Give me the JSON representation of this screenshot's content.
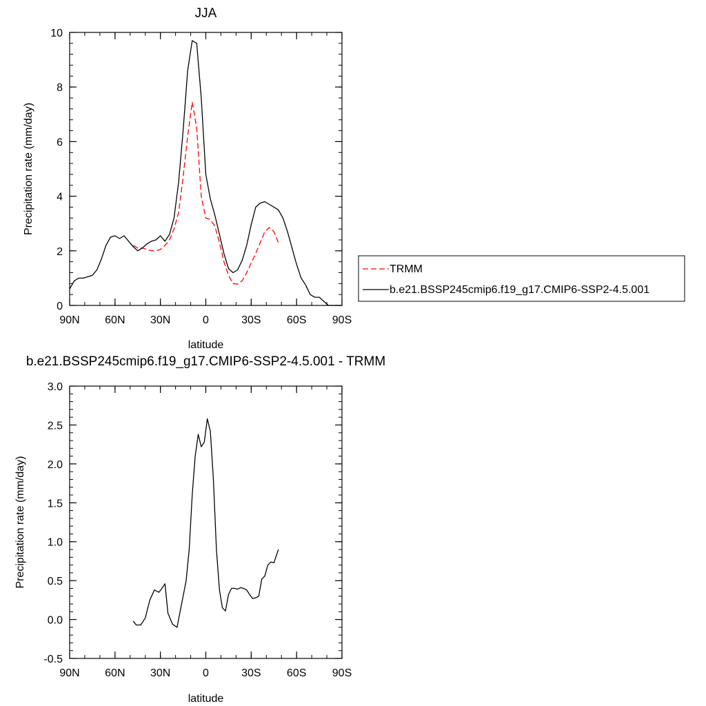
{
  "chart_data": [
    {
      "type": "line",
      "title": "JJA",
      "xlabel": "latitude",
      "ylabel": "Precipitation rate (mm/day)",
      "xlim": [
        90,
        -90
      ],
      "ylim": [
        0,
        10
      ],
      "x_ticks": [
        {
          "value": 90,
          "label": "90N"
        },
        {
          "value": 60,
          "label": "60N"
        },
        {
          "value": 30,
          "label": "30N"
        },
        {
          "value": 0,
          "label": "0"
        },
        {
          "value": -30,
          "label": "30S"
        },
        {
          "value": -60,
          "label": "60S"
        },
        {
          "value": -90,
          "label": "90S"
        }
      ],
      "y_ticks": [
        {
          "value": 0,
          "label": "0"
        },
        {
          "value": 2,
          "label": "2"
        },
        {
          "value": 4,
          "label": "4"
        },
        {
          "value": 6,
          "label": "6"
        },
        {
          "value": 8,
          "label": "8"
        },
        {
          "value": 10,
          "label": "10"
        }
      ],
      "legend": {
        "position": "right",
        "entries": [
          {
            "label": "TRMM",
            "color": "#ff0000",
            "dash": "dashed"
          },
          {
            "label": "b.e21.BSSP245cmip6.f19_g17.CMIP6-SSP2-4.5.001",
            "color": "#000000",
            "dash": "solid"
          }
        ]
      },
      "series": [
        {
          "name": "TRMM",
          "color": "#ff0000",
          "dash": "dashed",
          "x": [
            48,
            45,
            42,
            39,
            36,
            33,
            30,
            27,
            24,
            21,
            18,
            15,
            12,
            9,
            6,
            3,
            0,
            -3,
            -6,
            -9,
            -12,
            -15,
            -18,
            -21,
            -24,
            -27,
            -30,
            -33,
            -36,
            -39,
            -42,
            -45,
            -48
          ],
          "y": [
            2.2,
            2.1,
            2.1,
            2.05,
            2.0,
            2.0,
            2.05,
            2.2,
            2.4,
            2.8,
            3.4,
            4.7,
            6.2,
            7.45,
            6.5,
            4.0,
            3.2,
            3.15,
            2.9,
            2.3,
            1.6,
            1.1,
            0.8,
            0.78,
            0.9,
            1.2,
            1.55,
            1.9,
            2.3,
            2.7,
            2.85,
            2.7,
            2.3
          ]
        },
        {
          "name": "b.e21.BSSP245cmip6.f19_g17.CMIP6-SSP2-4.5.001",
          "color": "#000000",
          "dash": "solid",
          "x": [
            90,
            87,
            84,
            81,
            78,
            75,
            72,
            69,
            66,
            63,
            60,
            57,
            54,
            51,
            48,
            45,
            42,
            39,
            36,
            33,
            30,
            27,
            24,
            21,
            18,
            15,
            12,
            9,
            6,
            3,
            0,
            -3,
            -6,
            -9,
            -12,
            -15,
            -18,
            -21,
            -24,
            -27,
            -30,
            -33,
            -36,
            -39,
            -42,
            -45,
            -48,
            -51,
            -54,
            -57,
            -60,
            -63,
            -66,
            -69,
            -72,
            -75,
            -78,
            -81,
            -84,
            -87,
            -90
          ],
          "y": [
            0.6,
            0.9,
            1.0,
            1.0,
            1.05,
            1.1,
            1.3,
            1.7,
            2.2,
            2.5,
            2.55,
            2.45,
            2.55,
            2.35,
            2.15,
            2.0,
            2.1,
            2.25,
            2.35,
            2.4,
            2.55,
            2.35,
            2.6,
            3.2,
            4.5,
            6.4,
            8.6,
            9.7,
            9.6,
            7.6,
            4.8,
            3.9,
            3.3,
            2.6,
            1.9,
            1.35,
            1.2,
            1.3,
            1.65,
            2.2,
            2.95,
            3.6,
            3.75,
            3.8,
            3.7,
            3.6,
            3.5,
            3.2,
            2.7,
            2.1,
            1.5,
            1.0,
            0.75,
            0.4,
            0.3,
            0.3,
            0.15,
            0.0,
            0.0,
            0.0,
            0.0
          ]
        }
      ]
    },
    {
      "type": "line",
      "title": "b.e21.BSSP245cmip6.f19_g17.CMIP6-SSP2-4.5.001 - TRMM",
      "xlabel": "latitude",
      "ylabel": "Precipitation rate (mm/day)",
      "xlim": [
        90,
        -90
      ],
      "ylim": [
        -0.5,
        3.0
      ],
      "x_ticks": [
        {
          "value": 90,
          "label": "90N"
        },
        {
          "value": 60,
          "label": "60N"
        },
        {
          "value": 30,
          "label": "30N"
        },
        {
          "value": 0,
          "label": "0"
        },
        {
          "value": -30,
          "label": "30S"
        },
        {
          "value": -60,
          "label": "60S"
        },
        {
          "value": -90,
          "label": "90S"
        }
      ],
      "y_ticks": [
        {
          "value": -0.5,
          "label": "-0.5"
        },
        {
          "value": 0.0,
          "label": "0.0"
        },
        {
          "value": 0.5,
          "label": "0.5"
        },
        {
          "value": 1.0,
          "label": "1.0"
        },
        {
          "value": 1.5,
          "label": "1.5"
        },
        {
          "value": 2.0,
          "label": "2.0"
        },
        {
          "value": 2.5,
          "label": "2.5"
        },
        {
          "value": 3.0,
          "label": "3.0"
        }
      ],
      "series": [
        {
          "color": "#000000",
          "dash": "solid",
          "x": [
            48,
            46,
            43,
            40,
            37,
            34,
            31,
            29,
            27,
            25,
            22,
            19,
            16,
            13,
            11,
            9,
            7,
            5,
            3,
            1,
            -1,
            -3,
            -5,
            -7,
            -9,
            -11,
            -13,
            -15,
            -17,
            -19,
            -21,
            -23,
            -25,
            -27,
            -29,
            -31,
            -33,
            -35,
            -37,
            -39,
            -41,
            -43,
            -45,
            -48
          ],
          "y": [
            -0.02,
            -0.07,
            -0.07,
            0.02,
            0.25,
            0.38,
            0.35,
            0.4,
            0.46,
            0.08,
            -0.06,
            -0.1,
            0.2,
            0.5,
            0.9,
            1.6,
            2.1,
            2.38,
            2.22,
            2.28,
            2.58,
            2.42,
            1.8,
            0.9,
            0.38,
            0.15,
            0.11,
            0.32,
            0.4,
            0.4,
            0.39,
            0.41,
            0.4,
            0.38,
            0.32,
            0.27,
            0.28,
            0.3,
            0.52,
            0.56,
            0.7,
            0.74,
            0.73,
            0.9
          ]
        }
      ]
    }
  ]
}
